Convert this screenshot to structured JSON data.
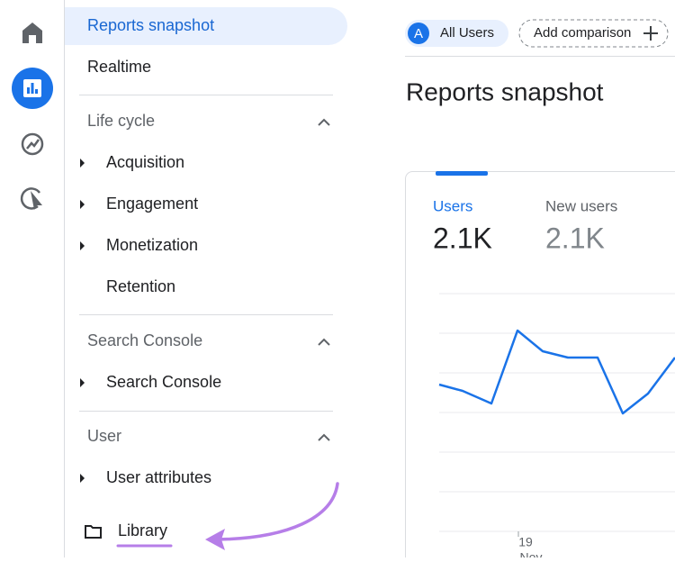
{
  "nav": {
    "active": "Reports snapshot",
    "realtime": "Realtime",
    "sections": [
      {
        "title": "Life cycle",
        "items": [
          "Acquisition",
          "Engagement",
          "Monetization",
          "Retention"
        ]
      },
      {
        "title": "Search Console",
        "items": [
          "Search Console"
        ]
      },
      {
        "title": "User",
        "items": [
          "User attributes"
        ]
      }
    ],
    "library": "Library"
  },
  "header": {
    "segment_letter": "A",
    "segment": "All Users",
    "add_comparison": "Add comparison",
    "title": "Reports snapshot"
  },
  "card": {
    "metrics": [
      {
        "label": "Users",
        "value": "2.1K"
      },
      {
        "label": "New users",
        "value": "2.1K"
      }
    ],
    "x_labels": [
      "19",
      "Nov"
    ]
  }
}
